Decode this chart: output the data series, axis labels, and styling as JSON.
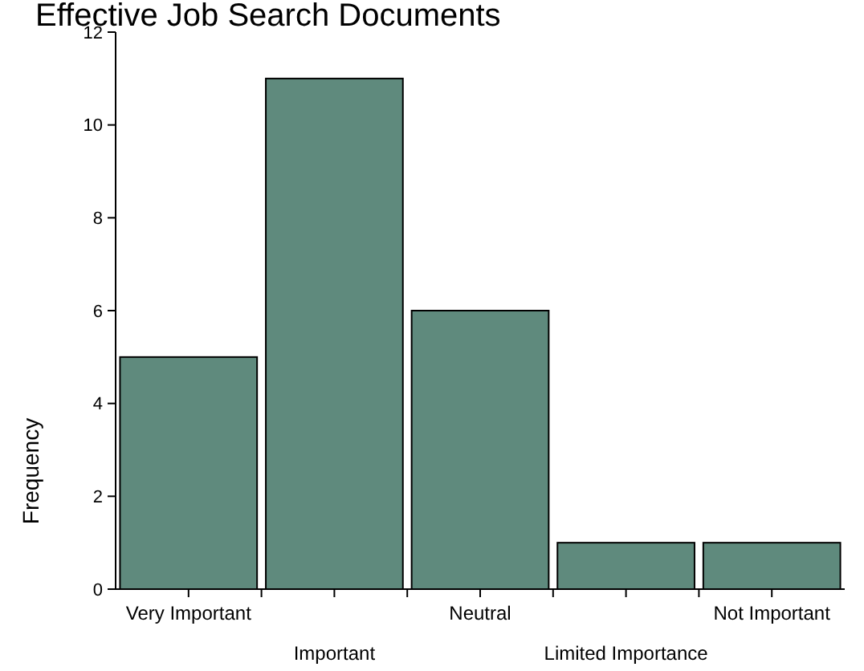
{
  "chart_data": {
    "type": "bar",
    "title": "Effective Job Search Documents",
    "ylabel": "Frequency",
    "categories": [
      "Very Important",
      "Important",
      "Neutral",
      "Limited Importance",
      "Not Important"
    ],
    "values": [
      5,
      11,
      6,
      1,
      1
    ],
    "color": "#5f8a7d",
    "ylim": [
      0,
      12
    ],
    "yticks": [
      0,
      2,
      4,
      6,
      8,
      10,
      12
    ]
  }
}
